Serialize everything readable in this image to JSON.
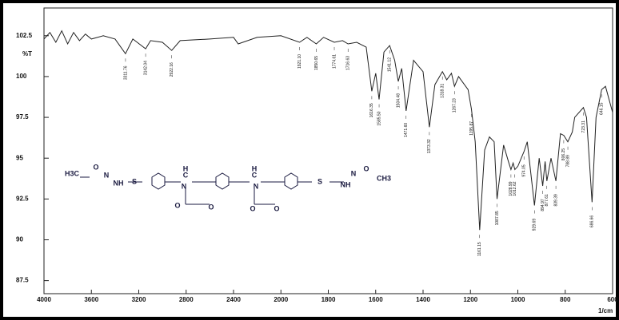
{
  "chart_data": {
    "type": "line",
    "ylabel": "%T",
    "xlabel": "1/cm",
    "color": "#222222",
    "xlim": [
      4000,
      600
    ],
    "ylim": [
      86.7,
      104.2
    ],
    "xticks": [
      4000,
      3600,
      3200,
      2800,
      2400,
      2000,
      1800,
      1600,
      1400,
      1200,
      1000,
      800,
      600
    ],
    "yticks": [
      102.5,
      100,
      97.5,
      95,
      92.5,
      90,
      87.5
    ],
    "x": [
      4000,
      3950,
      3900,
      3850,
      3800,
      3750,
      3700,
      3650,
      3600,
      3500,
      3400,
      3311.76,
      3250,
      3142.04,
      3100,
      3000,
      2922.16,
      2850,
      2600,
      2400,
      2360,
      2200,
      2000,
      1921.1,
      1890,
      1850.65,
      1820,
      1774.61,
      1740,
      1716.63,
      1680,
      1640,
      1616.35,
      1600,
      1585.5,
      1565,
      1541.12,
      1520,
      1504.48,
      1490,
      1471.6,
      1440,
      1400,
      1373.32,
      1350,
      1318.31,
      1300,
      1280,
      1267.23,
      1250,
      1210,
      1195.87,
      1180,
      1161.15,
      1140,
      1120,
      1100,
      1087.85,
      1060,
      1040,
      1028.99,
      1020,
      1012.62,
      1000,
      974.05,
      960,
      929.69,
      910,
      894.97,
      885,
      877.61,
      860,
      839.39,
      820,
      806.25,
      788.89,
      770,
      760,
      723.31,
      710,
      686.66,
      670,
      646.15,
      630,
      600
    ],
    "values": [
      102.3,
      102.7,
      102.1,
      102.8,
      102.0,
      102.7,
      102.2,
      102.6,
      102.3,
      102.5,
      102.3,
      101.4,
      102.3,
      101.7,
      102.2,
      102.1,
      101.6,
      102.2,
      102.3,
      102.4,
      102.0,
      102.4,
      102.5,
      102.1,
      102.4,
      102.0,
      102.4,
      102.1,
      102.2,
      102.0,
      102.1,
      101.8,
      99.1,
      100.2,
      98.6,
      101.5,
      101.9,
      101.0,
      99.7,
      100.5,
      97.9,
      101.0,
      100.3,
      96.9,
      99.5,
      100.3,
      99.8,
      100.2,
      99.4,
      100.0,
      99.2,
      98.0,
      96.0,
      90.6,
      95.5,
      96.3,
      96.0,
      92.5,
      95.8,
      94.8,
      94.3,
      94.7,
      94.3,
      94.5,
      95.4,
      96.0,
      92.1,
      95.0,
      93.3,
      94.8,
      93.6,
      95.0,
      93.6,
      96.5,
      96.4,
      96.0,
      96.6,
      97.5,
      98.1,
      97.5,
      92.3,
      97.5,
      99.2,
      99.4,
      97.8
    ],
    "peak_labels": [
      {
        "value": 3311.76,
        "label": "3311.76"
      },
      {
        "value": 3142.04,
        "label": "3142.04"
      },
      {
        "value": 2922.16,
        "label": "2922.16"
      },
      {
        "value": 1921.1,
        "label": "1921.10"
      },
      {
        "value": 1850.65,
        "label": "1850.65"
      },
      {
        "value": 1774.61,
        "label": "1774.61"
      },
      {
        "value": 1716.63,
        "label": "1716.63"
      },
      {
        "value": 1616.35,
        "label": "1616.35"
      },
      {
        "value": 1585.5,
        "label": "1585.50"
      },
      {
        "value": 1541.12,
        "label": "1541.12"
      },
      {
        "value": 1504.48,
        "label": "1504.48"
      },
      {
        "value": 1471.6,
        "label": "1471.60"
      },
      {
        "value": 1373.32,
        "label": "1373.32"
      },
      {
        "value": 1318.31,
        "label": "1318.31"
      },
      {
        "value": 1267.23,
        "label": "1267.23"
      },
      {
        "value": 1195.87,
        "label": "1195.87"
      },
      {
        "value": 1161.15,
        "label": "1161.15"
      },
      {
        "value": 1087.85,
        "label": "1087.85"
      },
      {
        "value": 1028.99,
        "label": "1028.99"
      },
      {
        "value": 1012.62,
        "label": "1012.62"
      },
      {
        "value": 974.05,
        "label": "974.05"
      },
      {
        "value": 929.69,
        "label": "929.69"
      },
      {
        "value": 894.97,
        "label": "894.97"
      },
      {
        "value": 877.61,
        "label": "877.61"
      },
      {
        "value": 839.39,
        "label": "839.39"
      },
      {
        "value": 806.25,
        "label": "806.25"
      },
      {
        "value": 788.89,
        "label": "788.89"
      },
      {
        "value": 723.31,
        "label": "723.31"
      },
      {
        "value": 686.66,
        "label": "686.66"
      },
      {
        "value": 646.15,
        "label": "646.15"
      }
    ],
    "structure_atoms": [
      "H3C",
      "O",
      "N",
      "NH",
      "S",
      "N",
      "C",
      "H",
      "O",
      "O",
      "C",
      "H",
      "N",
      "O",
      "O",
      "S",
      "NH",
      "N",
      "O",
      "CH3"
    ]
  }
}
